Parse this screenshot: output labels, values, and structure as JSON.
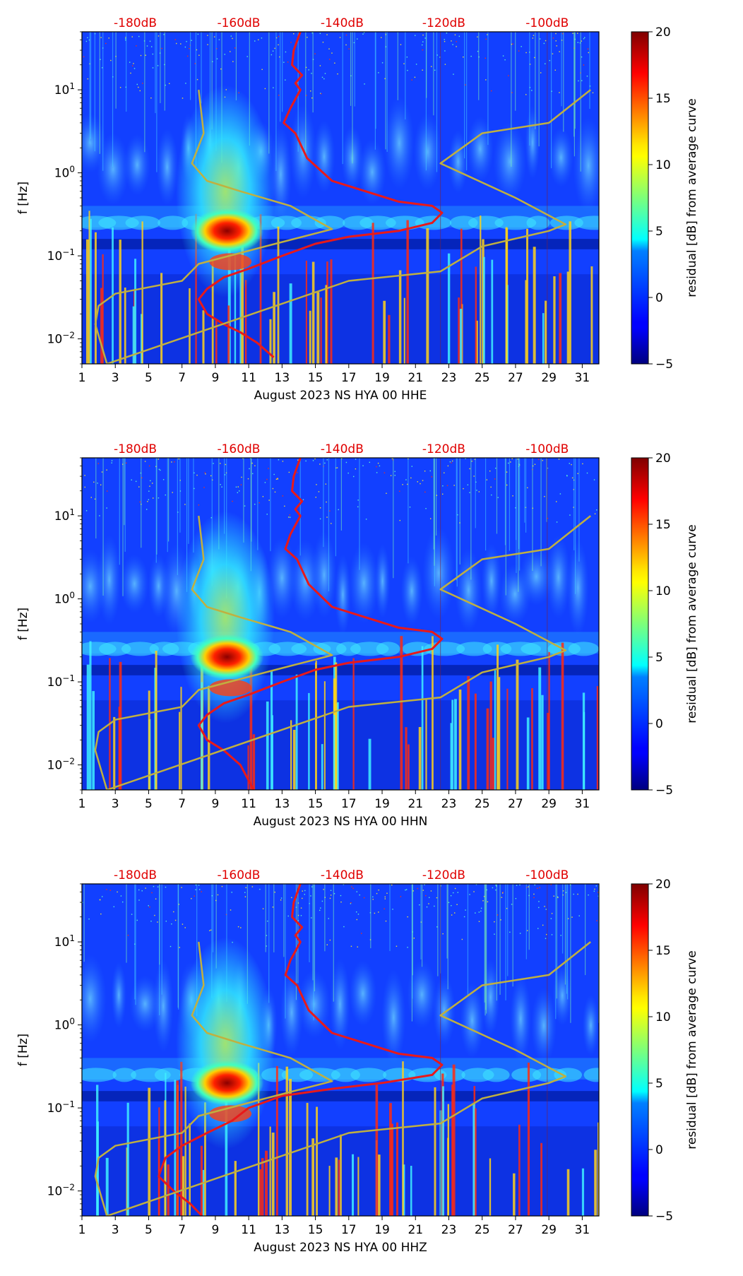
{
  "chart_data": [
    {
      "type": "heatmap",
      "title": "August 2023 NS HYA 00 HHE",
      "xlabel": "August 2023 NS HYA 00 HHE",
      "ylabel": "f [Hz]",
      "x_range": [
        1,
        32
      ],
      "x_ticks": [
        1,
        3,
        5,
        7,
        9,
        11,
        13,
        15,
        17,
        19,
        21,
        23,
        25,
        27,
        29,
        31
      ],
      "y_scale": "log",
      "y_range": [
        0.005,
        50
      ],
      "y_ticks": [
        "10^{-2}",
        "10^{-1}",
        "10^{0}",
        "10^{1}"
      ],
      "top_axis_labels": [
        "-180dB",
        "-160dB",
        "-140dB",
        "-120dB",
        "-100dB"
      ],
      "colorbar": {
        "label": "residual [dB] from average curve",
        "range": [
          -5,
          20
        ],
        "ticks": [
          -5,
          0,
          5,
          10,
          15,
          20
        ]
      },
      "series": [
        {
          "name": "average PSD (red)",
          "color": "#e8191a",
          "points": [
            [
              14.1,
              50
            ],
            [
              13.7,
              30
            ],
            [
              13.6,
              20
            ],
            [
              14.2,
              15
            ],
            [
              13.8,
              12
            ],
            [
              14.1,
              10
            ],
            [
              13.5,
              6
            ],
            [
              13.1,
              4
            ],
            [
              13.8,
              3
            ],
            [
              14.5,
              1.5
            ],
            [
              16,
              0.8
            ],
            [
              18,
              0.6
            ],
            [
              20,
              0.45
            ],
            [
              22,
              0.4
            ],
            [
              22.6,
              0.33
            ],
            [
              22,
              0.25
            ],
            [
              20,
              0.2
            ],
            [
              17,
              0.17
            ],
            [
              15,
              0.14
            ],
            [
              13,
              0.1
            ],
            [
              11,
              0.07
            ],
            [
              9.5,
              0.055
            ],
            [
              8.5,
              0.04
            ],
            [
              8,
              0.03
            ],
            [
              8.5,
              0.02
            ],
            [
              9.5,
              0.015
            ],
            [
              10.5,
              0.012
            ],
            [
              11.5,
              0.009
            ],
            [
              12.5,
              0.006
            ]
          ]
        },
        {
          "name": "reference curve (olive)",
          "color": "#c0b040",
          "points": [
            [
              8,
              10
            ],
            [
              8.3,
              3
            ],
            [
              7.6,
              1.3
            ],
            [
              8.5,
              0.8
            ],
            [
              10.5,
              0.6
            ],
            [
              13.5,
              0.4
            ],
            [
              16,
              0.21
            ],
            [
              12,
              0.13
            ],
            [
              8,
              0.08
            ],
            [
              7,
              0.05
            ],
            [
              3,
              0.035
            ],
            [
              2,
              0.025
            ],
            [
              1.8,
              0.015
            ],
            [
              2.5,
              0.005
            ],
            [
              17,
              0.05
            ],
            [
              22.5,
              0.065
            ],
            [
              25,
              0.13
            ],
            [
              29,
              0.2
            ],
            [
              30,
              0.24
            ],
            [
              27,
              0.5
            ],
            [
              22.5,
              1.3
            ],
            [
              25,
              3
            ],
            [
              29,
              4
            ],
            [
              31.5,
              10
            ]
          ]
        }
      ]
    },
    {
      "type": "heatmap",
      "title": "August 2023 NS HYA 00 HHN",
      "xlabel": "August 2023 NS HYA 00 HHN",
      "ylabel": "f [Hz]",
      "x_range": [
        1,
        32
      ],
      "x_ticks": [
        1,
        3,
        5,
        7,
        9,
        11,
        13,
        15,
        17,
        19,
        21,
        23,
        25,
        27,
        29,
        31
      ],
      "y_scale": "log",
      "y_range": [
        0.005,
        50
      ],
      "y_ticks": [
        "10^{-2}",
        "10^{-1}",
        "10^{0}",
        "10^{1}"
      ],
      "top_axis_labels": [
        "-180dB",
        "-160dB",
        "-140dB",
        "-120dB",
        "-100dB"
      ],
      "colorbar": {
        "label": "residual [dB] from average curve",
        "range": [
          -5,
          20
        ],
        "ticks": [
          -5,
          0,
          5,
          10,
          15,
          20
        ]
      },
      "series": [
        {
          "name": "average PSD (red)",
          "color": "#e8191a",
          "points": [
            [
              14.1,
              50
            ],
            [
              13.7,
              30
            ],
            [
              13.6,
              20
            ],
            [
              14.2,
              15
            ],
            [
              13.8,
              12
            ],
            [
              14.1,
              10
            ],
            [
              13.5,
              6
            ],
            [
              13.2,
              4
            ],
            [
              13.9,
              3
            ],
            [
              14.6,
              1.5
            ],
            [
              16,
              0.8
            ],
            [
              18,
              0.6
            ],
            [
              20,
              0.45
            ],
            [
              22,
              0.4
            ],
            [
              22.6,
              0.33
            ],
            [
              22,
              0.25
            ],
            [
              20,
              0.2
            ],
            [
              17,
              0.17
            ],
            [
              15,
              0.14
            ],
            [
              13,
              0.1
            ],
            [
              11,
              0.07
            ],
            [
              9.5,
              0.055
            ],
            [
              8.5,
              0.04
            ],
            [
              8,
              0.03
            ],
            [
              8.5,
              0.02
            ],
            [
              9.5,
              0.015
            ],
            [
              10.5,
              0.01
            ],
            [
              11.3,
              0.005
            ]
          ]
        },
        {
          "name": "reference curve (olive)",
          "color": "#c0b040",
          "points": [
            [
              8,
              10
            ],
            [
              8.3,
              3
            ],
            [
              7.6,
              1.3
            ],
            [
              8.5,
              0.8
            ],
            [
              10.5,
              0.6
            ],
            [
              13.5,
              0.4
            ],
            [
              16,
              0.21
            ],
            [
              12,
              0.13
            ],
            [
              8,
              0.08
            ],
            [
              7,
              0.05
            ],
            [
              3,
              0.035
            ],
            [
              2,
              0.025
            ],
            [
              1.8,
              0.015
            ],
            [
              2.5,
              0.005
            ],
            [
              17,
              0.05
            ],
            [
              22.5,
              0.065
            ],
            [
              25,
              0.13
            ],
            [
              29,
              0.2
            ],
            [
              30,
              0.24
            ],
            [
              27,
              0.5
            ],
            [
              22.5,
              1.3
            ],
            [
              25,
              3
            ],
            [
              29,
              4
            ],
            [
              31.5,
              10
            ]
          ]
        }
      ]
    },
    {
      "type": "heatmap",
      "title": "August 2023 NS HYA 00 HHZ",
      "xlabel": "August 2023 NS HYA 00 HHZ",
      "ylabel": "f [Hz]",
      "x_range": [
        1,
        32
      ],
      "x_ticks": [
        1,
        3,
        5,
        7,
        9,
        11,
        13,
        15,
        17,
        19,
        21,
        23,
        25,
        27,
        29,
        31
      ],
      "y_scale": "log",
      "y_range": [
        0.005,
        50
      ],
      "y_ticks": [
        "10^{-2}",
        "10^{-1}",
        "10^{0}",
        "10^{1}"
      ],
      "top_axis_labels": [
        "-180dB",
        "-160dB",
        "-140dB",
        "-120dB",
        "-100dB"
      ],
      "colorbar": {
        "label": "residual [dB] from average curve",
        "range": [
          -5,
          20
        ],
        "ticks": [
          -5,
          0,
          5,
          10,
          15,
          20
        ]
      },
      "series": [
        {
          "name": "average PSD (red)",
          "color": "#e8191a",
          "points": [
            [
              14.1,
              50
            ],
            [
              13.7,
              30
            ],
            [
              13.6,
              20
            ],
            [
              14.2,
              15
            ],
            [
              13.8,
              12
            ],
            [
              14.1,
              10
            ],
            [
              13.5,
              6
            ],
            [
              13.2,
              4
            ],
            [
              13.9,
              3
            ],
            [
              14.6,
              1.5
            ],
            [
              16,
              0.8
            ],
            [
              18,
              0.6
            ],
            [
              20,
              0.45
            ],
            [
              22,
              0.4
            ],
            [
              22.6,
              0.33
            ],
            [
              22,
              0.25
            ],
            [
              19,
              0.2
            ],
            [
              16,
              0.17
            ],
            [
              13,
              0.14
            ],
            [
              11,
              0.1
            ],
            [
              10,
              0.07
            ],
            [
              8.5,
              0.05
            ],
            [
              7,
              0.035
            ],
            [
              6,
              0.025
            ],
            [
              5.6,
              0.015
            ],
            [
              6.5,
              0.01
            ],
            [
              7.5,
              0.007
            ],
            [
              8.2,
              0.005
            ]
          ]
        },
        {
          "name": "reference curve (olive)",
          "color": "#c0b040",
          "points": [
            [
              8,
              10
            ],
            [
              8.3,
              3
            ],
            [
              7.6,
              1.3
            ],
            [
              8.5,
              0.8
            ],
            [
              10.5,
              0.6
            ],
            [
              13.5,
              0.4
            ],
            [
              16,
              0.21
            ],
            [
              12,
              0.13
            ],
            [
              8,
              0.08
            ],
            [
              7,
              0.05
            ],
            [
              3,
              0.035
            ],
            [
              2,
              0.025
            ],
            [
              1.8,
              0.015
            ],
            [
              2.5,
              0.005
            ],
            [
              17,
              0.05
            ],
            [
              22.5,
              0.065
            ],
            [
              25,
              0.13
            ],
            [
              29,
              0.2
            ],
            [
              30,
              0.24
            ],
            [
              27,
              0.5
            ],
            [
              22.5,
              1.3
            ],
            [
              25,
              3
            ],
            [
              29,
              4
            ],
            [
              31.5,
              10
            ]
          ]
        }
      ]
    }
  ]
}
